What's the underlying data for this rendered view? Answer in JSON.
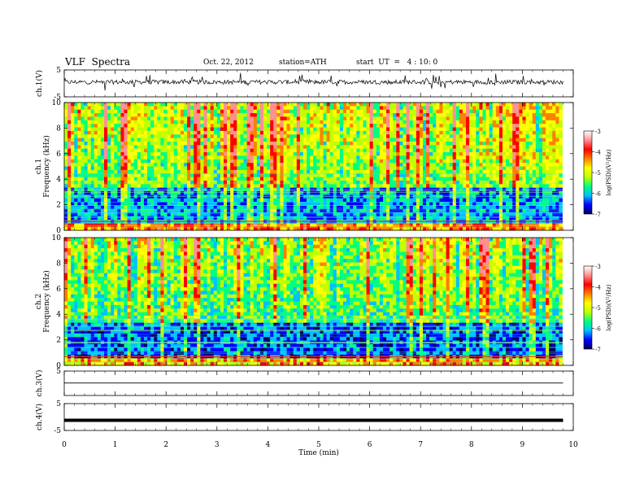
{
  "header": {
    "title": "VLF  Spectra",
    "date": "Oct. 22, 2012",
    "station": "station=ATH",
    "start": "start  UT  =   4 : 10: 0"
  },
  "colors": {
    "colormap": [
      "#000060",
      "#0000ff",
      "#00c0ff",
      "#00ff80",
      "#c0ff00",
      "#ffff00",
      "#ff8000",
      "#ff0000",
      "#ff9090",
      "#ffffff"
    ],
    "trace": "#000000",
    "frame": "#000000"
  },
  "chart_data": [
    {
      "type": "line",
      "name": "ch1-waveform",
      "ylabel": "ch.1(V)",
      "ylim": [
        -5,
        5
      ],
      "yticks": [
        "5",
        "-5"
      ],
      "baseline": 0.5,
      "x_end_min": 9.8
    },
    {
      "type": "heatmap",
      "name": "ch1-spectrogram",
      "ylabel": "ch.1\nFrequency  (kHz)",
      "ylabel_line1": "ch.1",
      "ylabel_line2": "Frequency  (kHz)",
      "ylim": [
        0,
        10
      ],
      "yticks": [
        "0",
        "2",
        "4",
        "6",
        "8",
        "10"
      ],
      "x_end_min": 9.8,
      "colorbar": {
        "label": "log(PSD)(V²/Hz)",
        "range": [
          -7,
          -3
        ],
        "ticks": [
          "-3",
          "-4",
          "-5",
          "-6",
          "-7"
        ]
      }
    },
    {
      "type": "heatmap",
      "name": "ch2-spectrogram",
      "ylabel": "ch.2\nFrequency  (kHz)",
      "ylabel_line1": "ch.2",
      "ylabel_line2": "Frequency  (kHz)",
      "ylim": [
        0,
        10
      ],
      "yticks": [
        "0",
        "2",
        "4",
        "6",
        "8",
        "10"
      ],
      "x_end_min": 9.8,
      "colorbar": {
        "label": "log(PSD)(V²/Hz)",
        "range": [
          -7,
          -3
        ],
        "ticks": [
          "-3",
          "-4",
          "-5",
          "-6",
          "-7"
        ]
      }
    },
    {
      "type": "line",
      "name": "ch3-waveform",
      "ylabel": "ch.3(V)",
      "ylim": [
        -5,
        5
      ],
      "yticks": [
        "5"
      ],
      "baseline": 0.1,
      "x_end_min": 9.8
    },
    {
      "type": "line",
      "name": "ch4-waveform",
      "ylabel": "ch.4(V)",
      "ylim": [
        -5,
        5
      ],
      "yticks": [
        "5",
        "-5"
      ],
      "baseline": -1.2,
      "x_end_min": 9.8
    }
  ],
  "xaxis": {
    "label": "Time  (min)",
    "range": [
      0,
      10
    ],
    "ticks": [
      "0",
      "1",
      "2",
      "3",
      "4",
      "5",
      "6",
      "7",
      "8",
      "9",
      "10"
    ]
  }
}
